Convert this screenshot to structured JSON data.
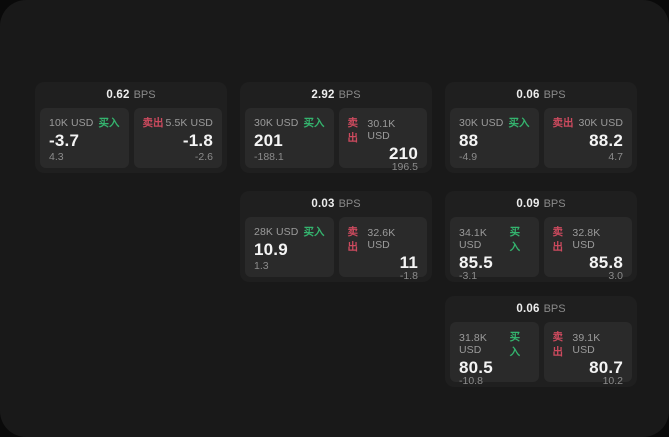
{
  "labels": {
    "bps_unit": "BPS",
    "buy": "买入",
    "sell": "卖出"
  },
  "colors": {
    "window_background": "#191919",
    "outer_background": "#0a0a0a",
    "card_background": "#1f1f1f",
    "panel_background": "#2a2a2a",
    "buy_green": "#34b46e",
    "sell_red": "#cd4a5e"
  },
  "cards": [
    {
      "bps": "0.62",
      "buy": {
        "size": "10K USD",
        "value": "-3.7",
        "sub": "4.3"
      },
      "sell": {
        "size": "5.5K USD",
        "value": "-1.8",
        "sub": "-2.6"
      }
    },
    {
      "bps": "2.92",
      "buy": {
        "size": "30K USD",
        "value": "201",
        "sub": "-188.1"
      },
      "sell": {
        "size": "30.1K USD",
        "value": "210",
        "sub": "196.5"
      }
    },
    {
      "bps": "0.06",
      "buy": {
        "size": "30K USD",
        "value": "88",
        "sub": "-4.9"
      },
      "sell": {
        "size": "30K USD",
        "value": "88.2",
        "sub": "4.7"
      }
    },
    {
      "bps": "0.03",
      "buy": {
        "size": "28K USD",
        "value": "10.9",
        "sub": "1.3"
      },
      "sell": {
        "size": "32.6K USD",
        "value": "11",
        "sub": "-1.8"
      }
    },
    {
      "bps": "0.09",
      "buy": {
        "size": "34.1K USD",
        "value": "85.5",
        "sub": "-3.1"
      },
      "sell": {
        "size": "32.8K USD",
        "value": "85.8",
        "sub": "3.0"
      }
    },
    {
      "bps": "0.06",
      "buy": {
        "size": "31.8K USD",
        "value": "80.5",
        "sub": "-10.8"
      },
      "sell": {
        "size": "39.1K USD",
        "value": "80.7",
        "sub": "10.2"
      }
    }
  ]
}
